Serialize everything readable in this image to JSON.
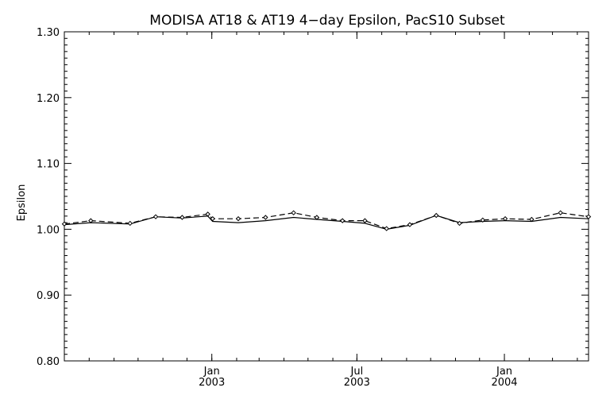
{
  "chart_data": {
    "type": "line",
    "title": "MODISA AT18 & AT19 4−day Epsilon, PacS10 Subset",
    "xlabel": "",
    "ylabel": "Epsilon",
    "ylim": [
      0.8,
      1.3
    ],
    "yticks": [
      "0.80",
      "0.90",
      "1.00",
      "1.10",
      "1.20",
      "1.30"
    ],
    "xlim": [
      "2002-07-01",
      "2004-04-15"
    ],
    "xticks": [
      {
        "date": "2003-01-01",
        "month": "Jan",
        "year": "2003"
      },
      {
        "date": "2003-07-01",
        "month": "Jul",
        "year": "2003"
      },
      {
        "date": "2004-01-01",
        "month": "Jan",
        "year": "2004"
      }
    ],
    "grid": false,
    "series": [
      {
        "style": "solid",
        "marker": "none",
        "x": [
          "2002-07-01",
          "2002-08-03",
          "2002-09-21",
          "2002-10-23",
          "2002-11-25",
          "2002-12-27",
          "2003-01-02",
          "2003-02-03",
          "2003-03-09",
          "2003-04-13",
          "2003-05-12",
          "2003-06-13",
          "2003-07-11",
          "2003-08-07",
          "2003-09-05",
          "2003-10-08",
          "2003-11-06",
          "2003-12-05",
          "2004-01-02",
          "2004-02-04",
          "2004-03-11",
          "2004-04-15"
        ],
        "y": [
          1.007,
          1.01,
          1.008,
          1.019,
          1.017,
          1.02,
          1.012,
          1.01,
          1.013,
          1.018,
          1.015,
          1.012,
          1.009,
          1.0,
          1.006,
          1.021,
          1.01,
          1.012,
          1.013,
          1.012,
          1.018,
          1.016
        ]
      },
      {
        "style": "dashed",
        "marker": "diamond",
        "x": [
          "2002-07-01",
          "2002-08-03",
          "2002-09-21",
          "2002-10-23",
          "2002-11-25",
          "2002-12-27",
          "2003-01-02",
          "2003-02-03",
          "2003-03-09",
          "2003-04-13",
          "2003-05-12",
          "2003-06-13",
          "2003-07-11",
          "2003-08-07",
          "2003-09-05",
          "2003-10-08",
          "2003-11-06",
          "2003-12-05",
          "2004-01-02",
          "2004-02-04",
          "2004-03-11",
          "2004-04-15"
        ],
        "y": [
          1.008,
          1.013,
          1.009,
          1.019,
          1.018,
          1.023,
          1.016,
          1.016,
          1.018,
          1.025,
          1.018,
          1.013,
          1.013,
          1.001,
          1.007,
          1.021,
          1.009,
          1.014,
          1.016,
          1.015,
          1.025,
          1.019
        ]
      }
    ]
  }
}
